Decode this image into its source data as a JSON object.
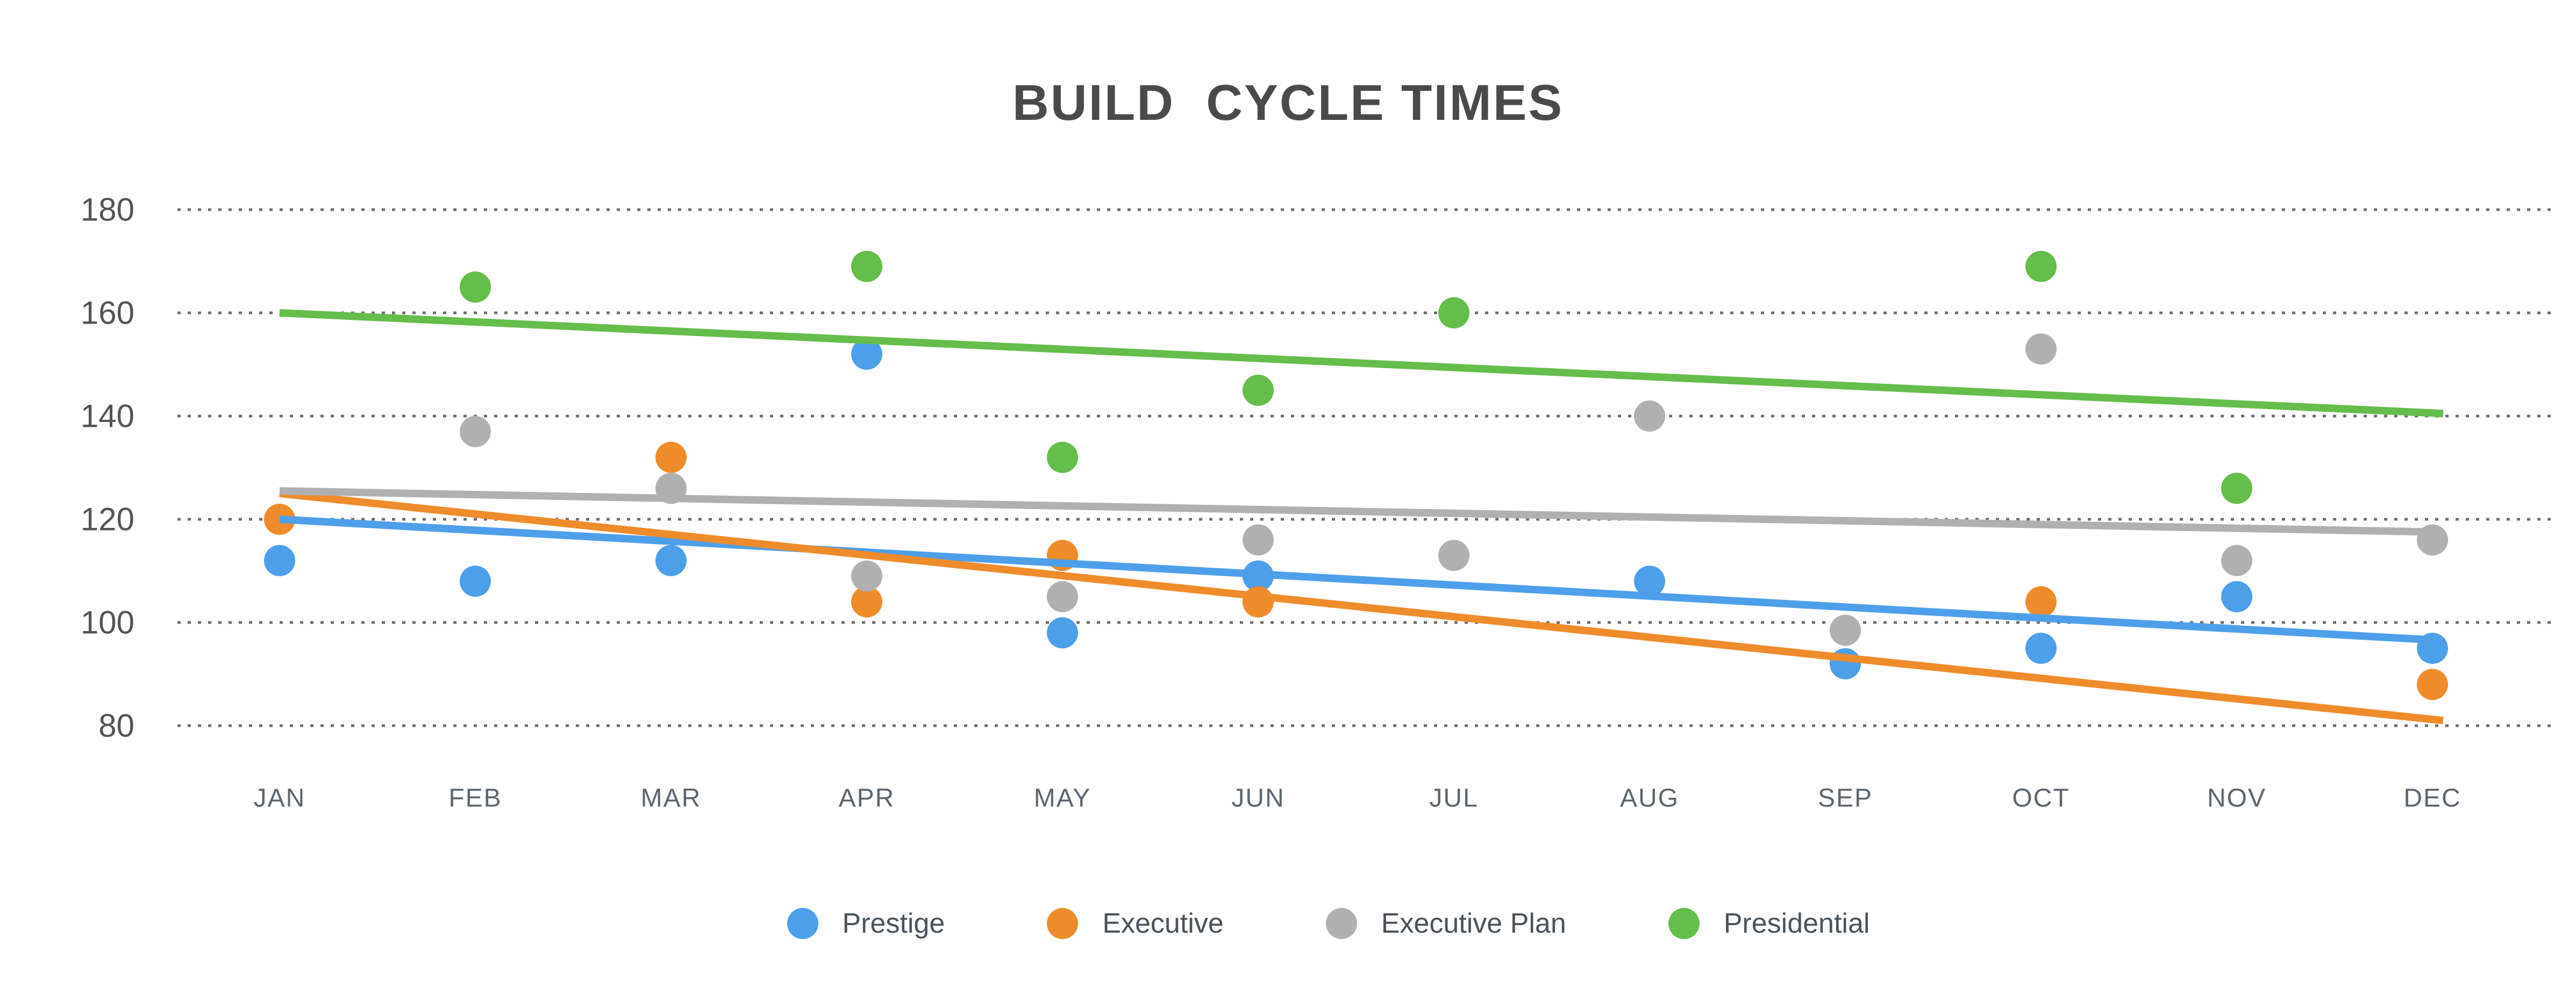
{
  "title": "BUILD  CYCLE TIMES",
  "colors": {
    "background": "#ffffff",
    "title_text": "#4a4a4a",
    "gridline": "#6e6e6e",
    "y_axis_text": "#545454",
    "x_axis_text": "#5c6670",
    "legend_text": "#4a525a"
  },
  "chart_data": {
    "type": "scatter",
    "title": "BUILD  CYCLE TIMES",
    "xlabel": "",
    "ylabel": "",
    "categories": [
      "JAN",
      "FEB",
      "MAR",
      "APR",
      "MAY",
      "JUN",
      "JUL",
      "AUG",
      "SEP",
      "OCT",
      "NOV",
      "DEC"
    ],
    "y_axis": {
      "min": 80,
      "max": 180,
      "step": 20,
      "ticks": [
        180,
        160,
        140,
        120,
        100,
        80
      ],
      "gridlines": "dotted"
    },
    "legend_position": "bottom",
    "series": [
      {
        "name": "Prestige",
        "color": "#4d9fea",
        "points": [
          112,
          108,
          112,
          152,
          98,
          109,
          null,
          108,
          92,
          95,
          105,
          95
        ],
        "trendline": {
          "start_value": 120,
          "end_value": 96.5,
          "start_month": "JAN",
          "end_month": "DEC"
        }
      },
      {
        "name": "Executive",
        "color": "#ee8c2b",
        "points": [
          120,
          null,
          132,
          104,
          113,
          104,
          null,
          null,
          null,
          104,
          null,
          88
        ],
        "trendline": {
          "start_value": 125,
          "end_value": 81,
          "start_month": "JAN",
          "end_month": "DEC"
        }
      },
      {
        "name": "Executive Plan",
        "color": "#b0b0b0",
        "points": [
          null,
          137,
          126,
          109,
          105,
          116,
          113,
          140,
          98.5,
          153,
          112,
          116
        ],
        "trendline": {
          "start_value": 125.5,
          "end_value": 117.5,
          "start_month": "JAN",
          "end_month": "DEC"
        }
      },
      {
        "name": "Presidential",
        "color": "#65bd4b",
        "points": [
          null,
          165,
          null,
          169,
          132,
          145,
          160,
          null,
          null,
          169,
          126,
          null
        ],
        "trendline": {
          "start_value": 160,
          "end_value": 140.5,
          "start_month": "JAN",
          "end_month": "DEC"
        }
      }
    ]
  }
}
